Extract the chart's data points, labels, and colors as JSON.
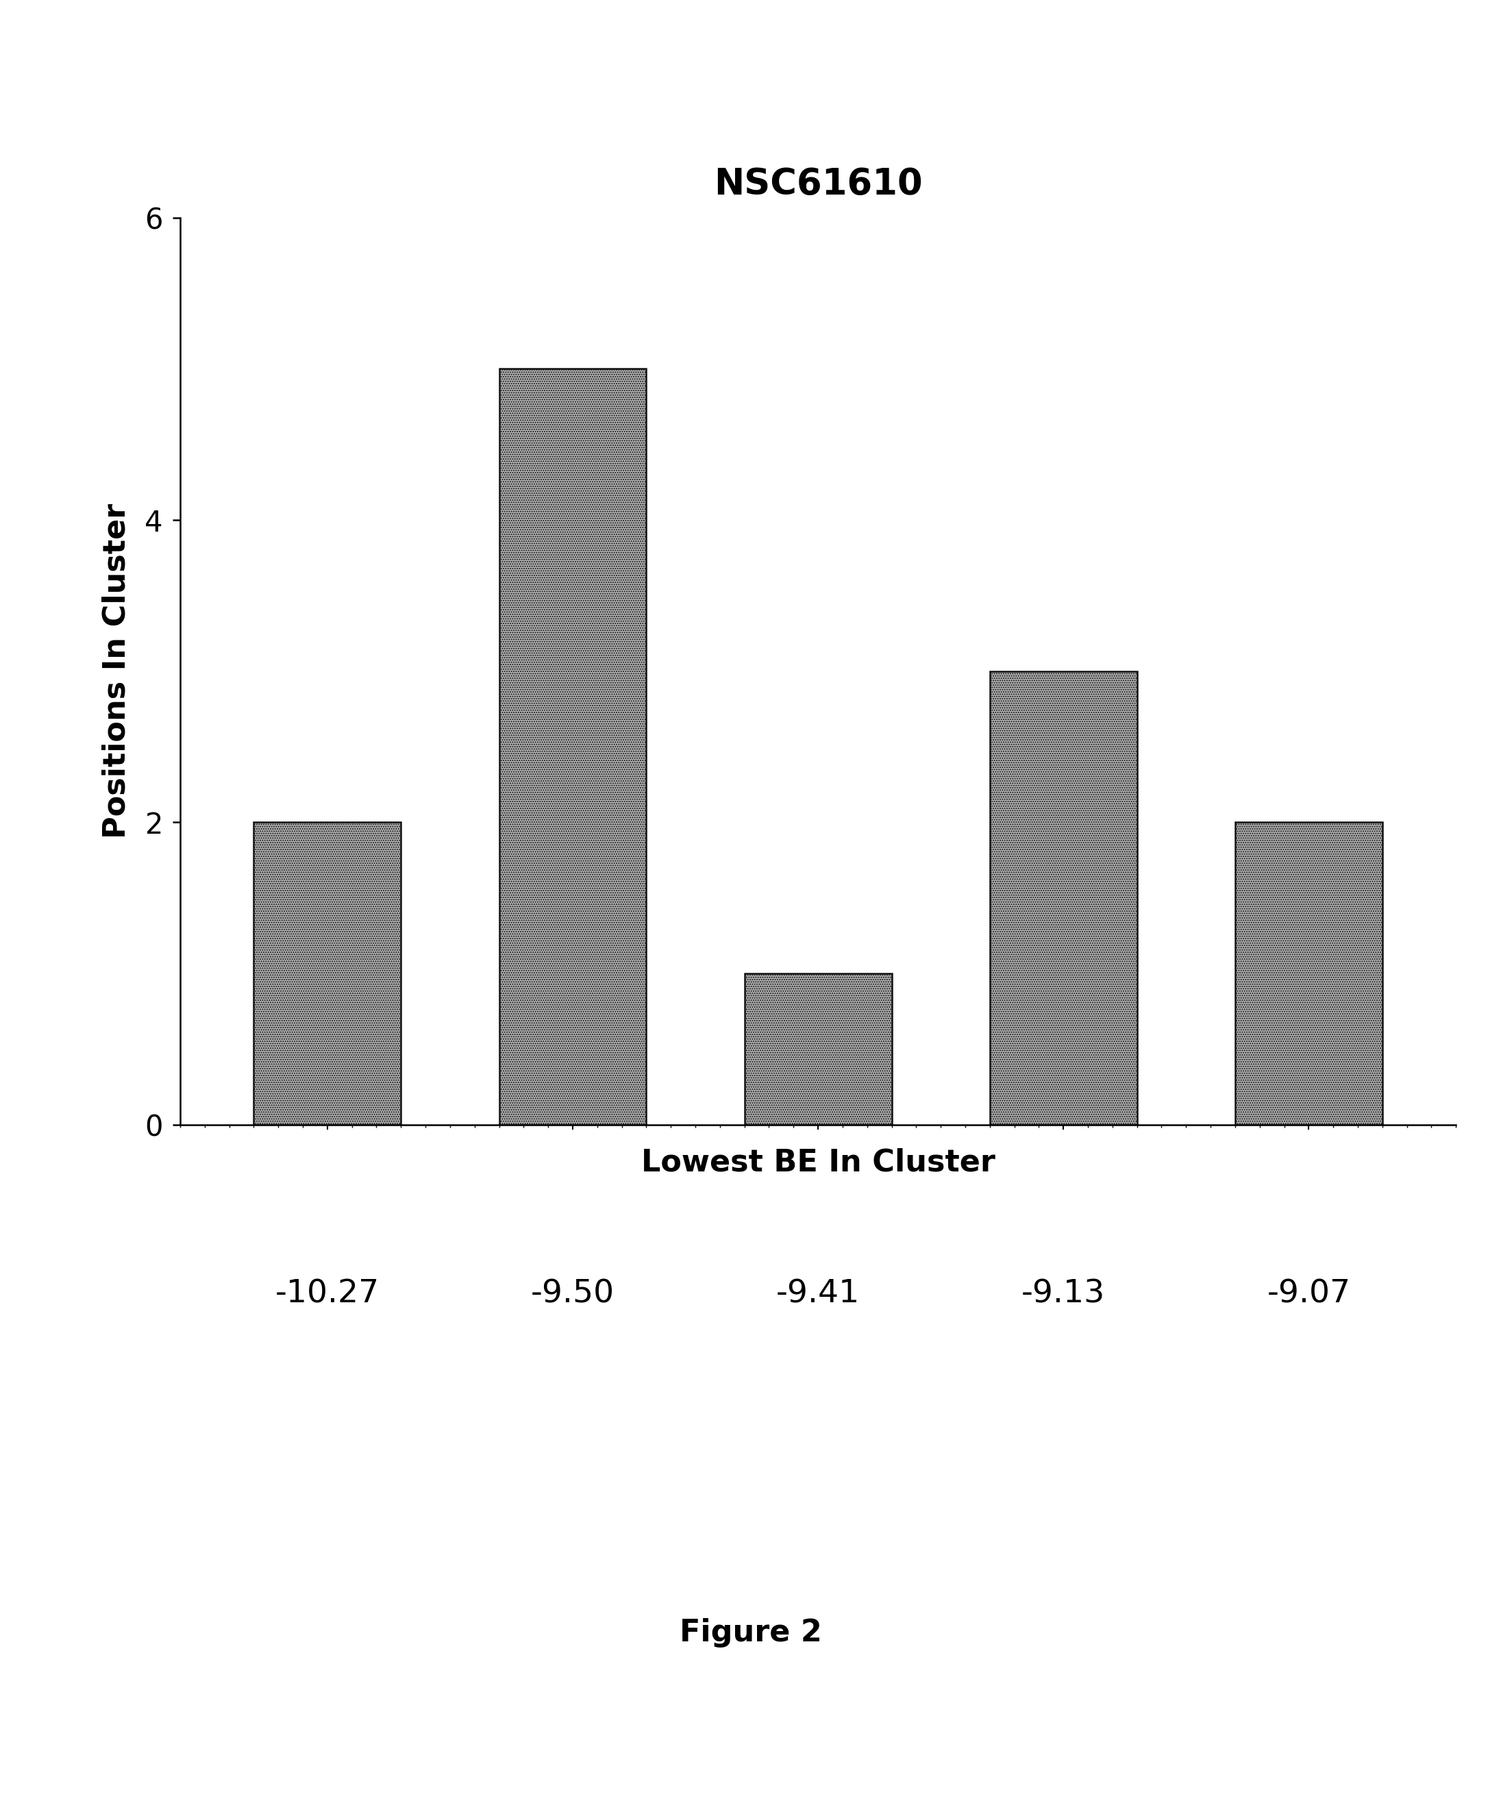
{
  "title": "NSC61610",
  "xlabel": "Lowest BE In Cluster",
  "ylabel": "Positions In Cluster",
  "categories": [
    "-10.27",
    "-9.50",
    "-9.41",
    "-9.13",
    "-9.07"
  ],
  "values": [
    2,
    5,
    1,
    3,
    2
  ],
  "ylim": [
    0,
    6
  ],
  "yticks": [
    0,
    2,
    4,
    6
  ],
  "bar_color": "#b0b0b0",
  "bar_edge_color": "#111111",
  "bar_hatch": ".....",
  "background_color": "#ffffff",
  "title_fontsize": 38,
  "label_fontsize": 32,
  "tick_fontsize": 30,
  "xtick_label_fontsize": 34,
  "figure_caption": "Figure 2",
  "caption_fontsize": 32
}
